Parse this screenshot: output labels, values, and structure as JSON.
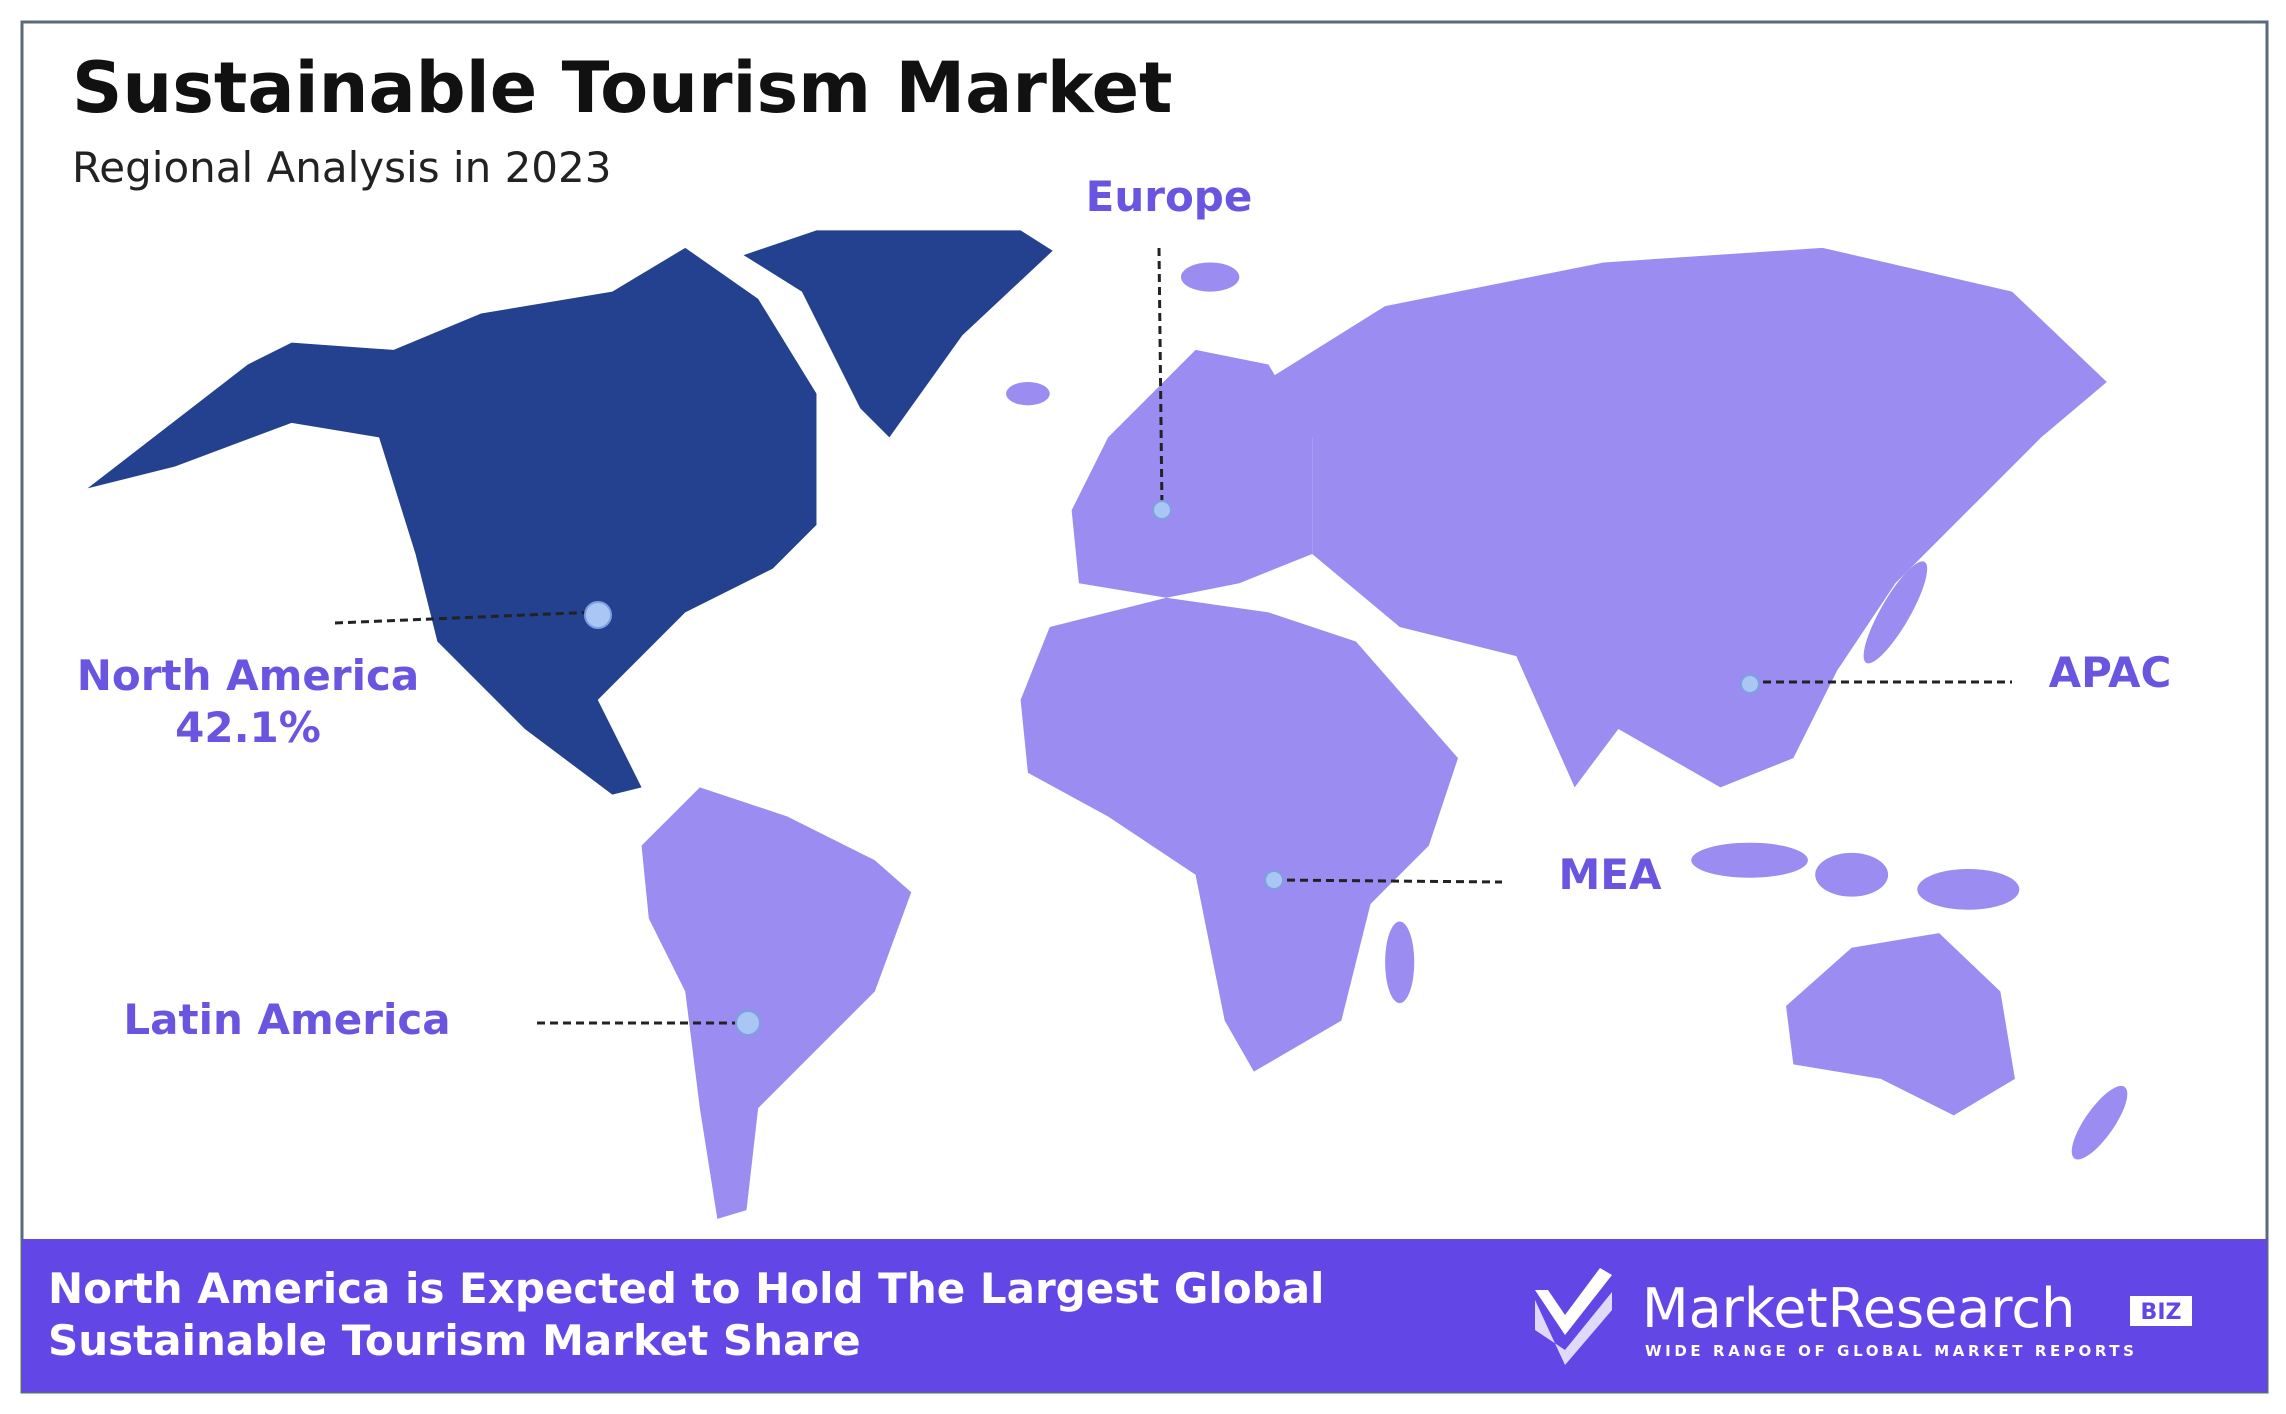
{
  "header": {
    "title": "Sustainable Tourism Market",
    "subtitle": "Regional Analysis in 2023"
  },
  "regions": [
    {
      "name": "North America",
      "share": "42.1%"
    },
    {
      "name": "Europe"
    },
    {
      "name": "APAC"
    },
    {
      "name": "MEA"
    },
    {
      "name": "Latin America"
    }
  ],
  "footer": {
    "lines": [
      "North America is Expected to Hold The Largest Global",
      "Sustainable Tourism Market Share"
    ]
  },
  "logo": {
    "name": "MarketResearch",
    "badge": "BIZ",
    "tagline": "WIDE RANGE OF GLOBAL MARKET REPORTS"
  }
}
